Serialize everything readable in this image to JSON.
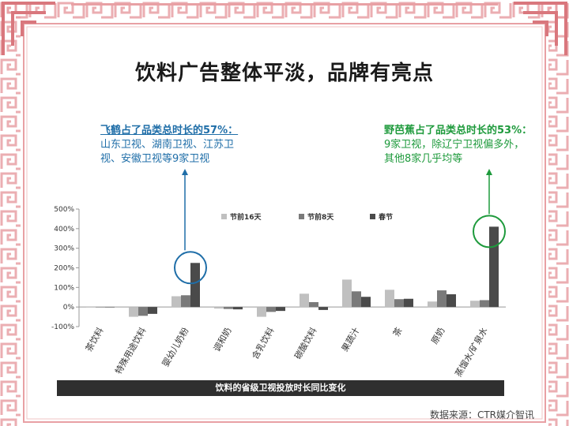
{
  "title": "饮料广告整体平淡，品牌有亮点",
  "annotations": {
    "left": {
      "heading": "飞鹤占了品类总时长的57%：",
      "line1": "山东卫视、湖南卫视、江苏卫",
      "line2": "视、安徽卫视等9家卫视"
    },
    "right": {
      "heading": "野芭蕉占了品类总时长的53%：",
      "line1": "9家卫视，除辽宁卫视偏多外，",
      "line2": "其他8家几乎均等"
    }
  },
  "footer_caption": "饮料的省级卫视投放时长同比变化",
  "source": "数据来源：CTR媒介智讯",
  "colors": {
    "frame": "#e8a0a4",
    "anno_left": "#1f6ea8",
    "anno_right": "#1e9a3c",
    "series": [
      "#c0c0c0",
      "#7a7a7a",
      "#4a4a4a"
    ]
  },
  "chart_data": {
    "type": "bar",
    "categories": [
      "茶饮料",
      "特殊用途饮料",
      "婴幼儿奶粉",
      "调和奶",
      "含乳饮料",
      "碳酸饮料",
      "果蔬汁",
      "茶",
      "原奶",
      "蒸馏水/矿泉水"
    ],
    "series": [
      {
        "name": "节前16天",
        "values": [
          0,
          -50,
          55,
          -8,
          -50,
          68,
          140,
          88,
          28,
          32
        ]
      },
      {
        "name": "节前8天",
        "values": [
          0,
          -45,
          60,
          -10,
          -25,
          25,
          80,
          40,
          85,
          35
        ]
      },
      {
        "name": "春节",
        "values": [
          0,
          -35,
          225,
          -12,
          -20,
          -15,
          52,
          42,
          65,
          410
        ]
      }
    ],
    "yticks": [
      "-100%",
      "0%",
      "100%",
      "200%",
      "300%",
      "400%",
      "500%"
    ],
    "ylim": [
      -100,
      500
    ],
    "legend_position": "top",
    "highlights": [
      {
        "category": "婴幼儿奶粉",
        "series": "春节",
        "color": "#1f6ea8"
      },
      {
        "category": "蒸馏水/矿泉水",
        "series": "春节",
        "color": "#1e9a3c"
      }
    ]
  }
}
